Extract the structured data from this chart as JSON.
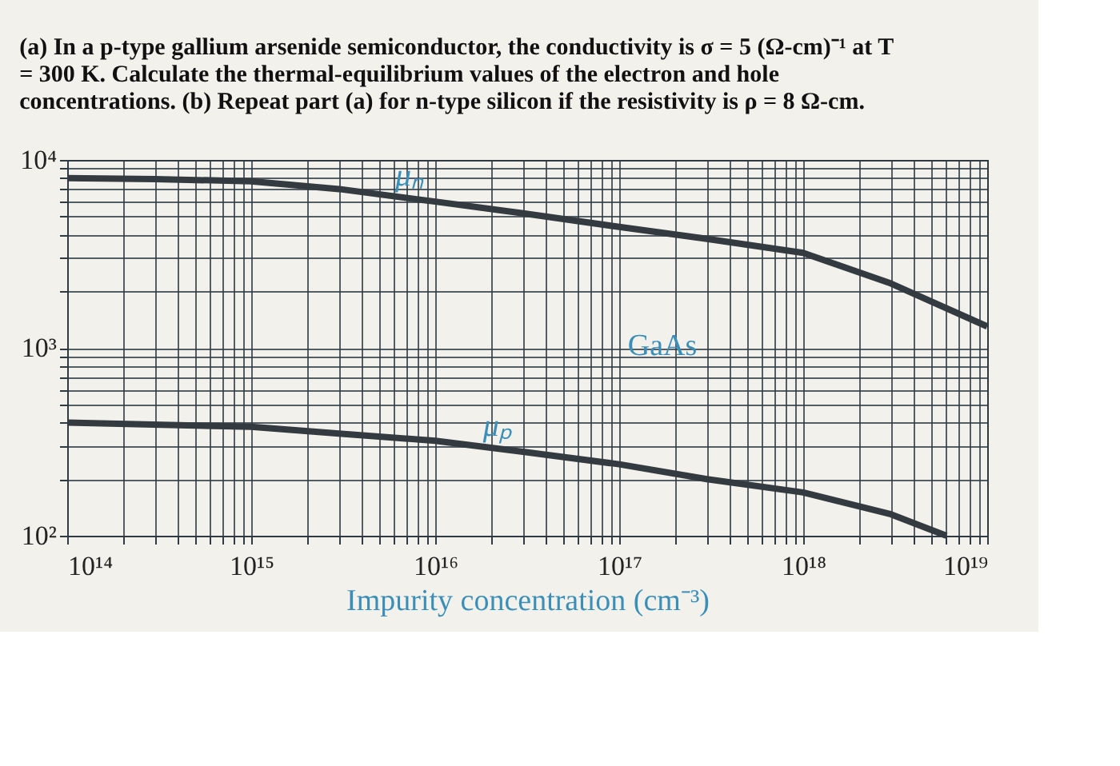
{
  "chart_data": {
    "type": "line",
    "title": "(a) In a p-type gallium arsenide semiconductor, the conductivity is σ = 5 (Ω-cm)⁻¹ at T = 300 K. Calculate the thermal-equilibrium values of the electron and hole concentrations. (b) Repeat part (a) for n-type silicon if the resistivity is ρ = 8 Ω-cm.",
    "xlabel": "Impurity concentration (cm⁻³)",
    "log": "xy",
    "grid": true,
    "marker": "none",
    "line_style": "solid",
    "series": [
      {
        "name": "μₙ",
        "color": "#333a40",
        "x": [
          100000000000000.0,
          300000000000000.0,
          1000000000000000.0,
          3000000000000000.0,
          1e+16,
          3e+16,
          1e+17,
          3e+17,
          1e+18,
          3e+18,
          1e+19
        ],
        "values": [
          8000,
          7900,
          7700,
          7000,
          6000,
          5200,
          4400,
          3800,
          3200,
          2200,
          1300
        ]
      },
      {
        "name": "μₚ",
        "color": "#333a40",
        "x": [
          100000000000000.0,
          1000000000000000.0,
          3000000000000000.0,
          1e+16,
          3e+16,
          1e+17,
          3e+17,
          1e+18,
          3e+18,
          6e+18
        ],
        "values": [
          400,
          380,
          350,
          320,
          280,
          240,
          200,
          170,
          130,
          100
        ]
      }
    ],
    "annotations": [
      "GaAs"
    ],
    "xlim": [
      100000000000000.0,
      1e+19
    ],
    "ylim": [
      100,
      10000
    ],
    "xticks": [
      {
        "value": 100000000000000.0,
        "label": "10¹⁴"
      },
      {
        "value": 200000000000000.0,
        "label": null
      },
      {
        "value": 300000000000000.0,
        "label": null
      },
      {
        "value": 400000000000000.0,
        "label": null
      },
      {
        "value": 500000000000000.0,
        "label": null
      },
      {
        "value": 600000000000000.0,
        "label": null
      },
      {
        "value": 700000000000000.0,
        "label": null
      },
      {
        "value": 800000000000000.0,
        "label": null
      },
      {
        "value": 900000000000000.0,
        "label": null
      },
      {
        "value": 1000000000000000.0,
        "label": "10¹⁵"
      },
      {
        "value": 2000000000000000.0,
        "label": null
      },
      {
        "value": 3000000000000000.0,
        "label": null
      },
      {
        "value": 4000000000000000.0,
        "label": null
      },
      {
        "value": 5000000000000000.0,
        "label": null
      },
      {
        "value": 6000000000000000.0,
        "label": null
      },
      {
        "value": 7000000000000000.0,
        "label": null
      },
      {
        "value": 8000000000000000.0,
        "label": null
      },
      {
        "value": 9000000000000000.0,
        "label": null
      },
      {
        "value": 1e+16,
        "label": "10¹⁶"
      },
      {
        "value": 2e+16,
        "label": null
      },
      {
        "value": 3e+16,
        "label": null
      },
      {
        "value": 4e+16,
        "label": null
      },
      {
        "value": 5e+16,
        "label": null
      },
      {
        "value": 6e+16,
        "label": null
      },
      {
        "value": 7e+16,
        "label": null
      },
      {
        "value": 8e+16,
        "label": null
      },
      {
        "value": 9e+16,
        "label": null
      },
      {
        "value": 1e+17,
        "label": "10¹⁷"
      },
      {
        "value": 2e+17,
        "label": null
      },
      {
        "value": 3e+17,
        "label": null
      },
      {
        "value": 4e+17,
        "label": null
      },
      {
        "value": 5e+17,
        "label": null
      },
      {
        "value": 6e+17,
        "label": null
      },
      {
        "value": 7e+17,
        "label": null
      },
      {
        "value": 8e+17,
        "label": null
      },
      {
        "value": 9e+17,
        "label": null
      },
      {
        "value": 1e+18,
        "label": "10¹⁸"
      },
      {
        "value": 2e+18,
        "label": null
      },
      {
        "value": 3e+18,
        "label": null
      },
      {
        "value": 4e+18,
        "label": null
      },
      {
        "value": 5e+18,
        "label": null
      },
      {
        "value": 6e+18,
        "label": null
      },
      {
        "value": 7e+18,
        "label": null
      },
      {
        "value": 8e+18,
        "label": null
      },
      {
        "value": 9e+18,
        "label": null
      },
      {
        "value": 1e+19,
        "label": "10¹⁹"
      }
    ],
    "yticks": [
      {
        "value": 100,
        "label": "10²"
      },
      {
        "value": 200,
        "label": null
      },
      {
        "value": 300,
        "label": null
      },
      {
        "value": 400,
        "label": null
      },
      {
        "value": 500,
        "label": null
      },
      {
        "value": 600,
        "label": null
      },
      {
        "value": 700,
        "label": null
      },
      {
        "value": 800,
        "label": null
      },
      {
        "value": 900,
        "label": null
      },
      {
        "value": 1000,
        "label": "10³"
      },
      {
        "value": 2000,
        "label": null
      },
      {
        "value": 3000,
        "label": null
      },
      {
        "value": 4000,
        "label": null
      },
      {
        "value": 5000,
        "label": null
      },
      {
        "value": 6000,
        "label": null
      },
      {
        "value": 7000,
        "label": null
      },
      {
        "value": 8000,
        "label": null
      },
      {
        "value": 9000,
        "label": null
      },
      {
        "value": 10000,
        "label": "10⁴"
      }
    ]
  }
}
